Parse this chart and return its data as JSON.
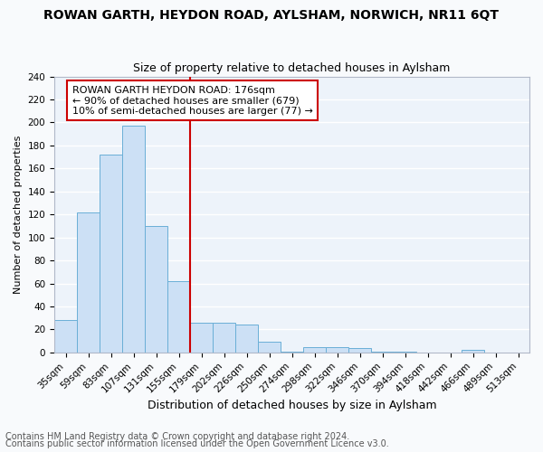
{
  "title1": "ROWAN GARTH, HEYDON ROAD, AYLSHAM, NORWICH, NR11 6QT",
  "title2": "Size of property relative to detached houses in Aylsham",
  "xlabel": "Distribution of detached houses by size in Aylsham",
  "ylabel": "Number of detached properties",
  "categories": [
    "35sqm",
    "59sqm",
    "83sqm",
    "107sqm",
    "131sqm",
    "155sqm",
    "179sqm",
    "202sqm",
    "226sqm",
    "250sqm",
    "274sqm",
    "298sqm",
    "322sqm",
    "346sqm",
    "370sqm",
    "394sqm",
    "418sqm",
    "442sqm",
    "466sqm",
    "489sqm",
    "513sqm"
  ],
  "values": [
    28,
    122,
    172,
    197,
    110,
    62,
    26,
    26,
    24,
    9,
    1,
    5,
    5,
    4,
    1,
    1,
    0,
    0,
    2,
    0,
    0
  ],
  "bar_color": "#cce0f5",
  "bar_edge_color": "#6aafd6",
  "vline_color": "#cc0000",
  "annotation_text": "ROWAN GARTH HEYDON ROAD: 176sqm\n← 90% of detached houses are smaller (679)\n10% of semi-detached houses are larger (77) →",
  "annotation_box_color": "#cc0000",
  "footer1": "Contains HM Land Registry data © Crown copyright and database right 2024.",
  "footer2": "Contains public sector information licensed under the Open Government Licence v3.0.",
  "ylim": [
    0,
    240
  ],
  "yticks": [
    0,
    20,
    40,
    60,
    80,
    100,
    120,
    140,
    160,
    180,
    200,
    220,
    240
  ],
  "bg_color": "#edf3fa",
  "fig_bg_color": "#f8fafc",
  "grid_color": "#ffffff",
  "title1_fontsize": 10,
  "title2_fontsize": 9,
  "ylabel_fontsize": 8,
  "xlabel_fontsize": 9,
  "tick_fontsize": 7.5,
  "footer_fontsize": 7,
  "annot_fontsize": 8
}
